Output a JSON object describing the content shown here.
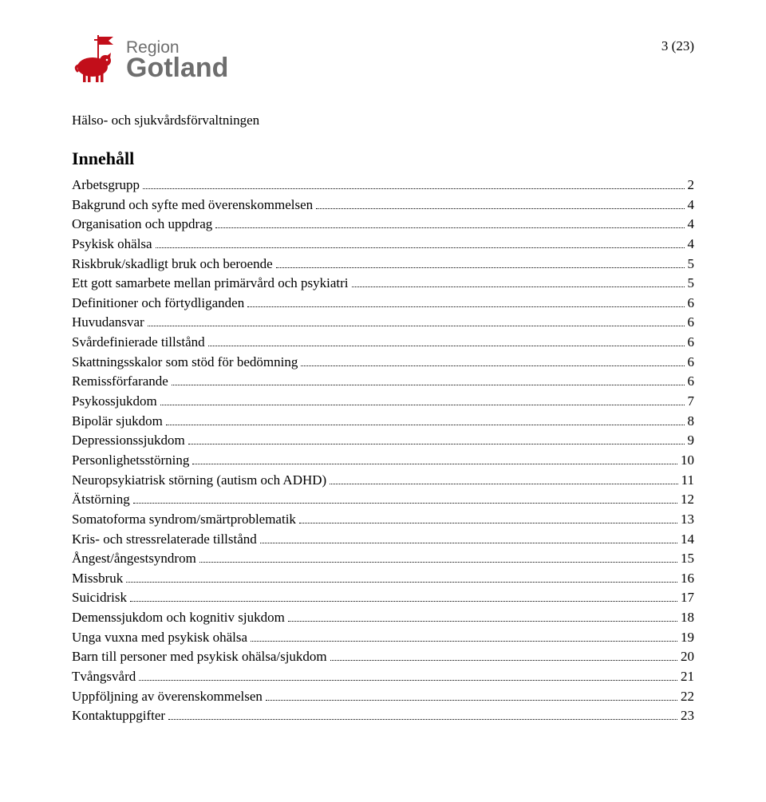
{
  "header": {
    "logo_region": "Region",
    "logo_name": "Gotland",
    "page_number": "3 (23)",
    "department": "Hälso- och sjukvårdsförvaltningen"
  },
  "toc": {
    "title": "Innehåll",
    "entries": [
      {
        "text": "Arbetsgrupp",
        "page": "2"
      },
      {
        "text": "Bakgrund och syfte med överenskommelsen",
        "page": "4"
      },
      {
        "text": "Organisation och uppdrag",
        "page": "4"
      },
      {
        "text": "Psykisk ohälsa",
        "page": "4"
      },
      {
        "text": "Riskbruk/skadligt bruk och beroende",
        "page": "5"
      },
      {
        "text": "Ett gott samarbete mellan primärvård och psykiatri",
        "page": "5"
      },
      {
        "text": "Definitioner och förtydliganden",
        "page": "6"
      },
      {
        "text": "Huvudansvar",
        "page": "6"
      },
      {
        "text": "Svårdefinierade tillstånd",
        "page": "6"
      },
      {
        "text": "Skattningsskalor som stöd för bedömning",
        "page": "6"
      },
      {
        "text": "Remissförfarande",
        "page": "6"
      },
      {
        "text": "Psykossjukdom",
        "page": "7"
      },
      {
        "text": "Bipolär sjukdom",
        "page": "8"
      },
      {
        "text": "Depressionssjukdom",
        "page": "9"
      },
      {
        "text": "Personlighetsstörning",
        "page": "10"
      },
      {
        "text": "Neuropsykiatrisk störning (autism och ADHD)",
        "page": "11"
      },
      {
        "text": "Ätstörning",
        "page": "12"
      },
      {
        "text": "Somatoforma syndrom/smärtproblematik",
        "page": "13"
      },
      {
        "text": "Kris- och stressrelaterade tillstånd",
        "page": "14"
      },
      {
        "text": "Ångest/ångestsyndrom",
        "page": "15"
      },
      {
        "text": "Missbruk",
        "page": "16"
      },
      {
        "text": "Suicidrisk",
        "page": "17"
      },
      {
        "text": "Demenssjukdom och kognitiv sjukdom",
        "page": "18"
      },
      {
        "text": "Unga vuxna med psykisk ohälsa",
        "page": "19"
      },
      {
        "text": "Barn till personer med psykisk ohälsa/sjukdom",
        "page": "20"
      },
      {
        "text": "Tvångsvård",
        "page": "21"
      },
      {
        "text": "Uppföljning av överenskommelsen",
        "page": "22"
      },
      {
        "text": "Kontaktuppgifter",
        "page": "23"
      }
    ]
  },
  "colors": {
    "brand_red": "#c20e1a",
    "brand_gray": "#6e6e6e",
    "text": "#000000",
    "background": "#ffffff"
  }
}
